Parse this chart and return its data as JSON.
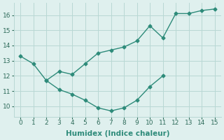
{
  "curve1_x": [
    0,
    1,
    2,
    3,
    4,
    5,
    6,
    7,
    8,
    9,
    10,
    11,
    12,
    13,
    14,
    15
  ],
  "curve1_y": [
    13.3,
    12.8,
    11.7,
    12.3,
    12.1,
    12.8,
    13.5,
    13.7,
    13.9,
    14.3,
    15.3,
    14.5,
    16.1,
    16.1,
    16.3,
    16.4
  ],
  "curve2_x": [
    2,
    3,
    4,
    5,
    6,
    7,
    8,
    9,
    10,
    11
  ],
  "curve2_y": [
    11.7,
    11.1,
    10.8,
    10.4,
    9.9,
    9.7,
    9.9,
    10.4,
    11.3,
    12.0
  ],
  "line_color": "#2e8b7a",
  "bg_color": "#dff0ee",
  "grid_color": "#b8d8d4",
  "xlabel": "Humidex (Indice chaleur)",
  "xlim": [
    -0.5,
    15.5
  ],
  "ylim": [
    9.3,
    16.8
  ],
  "xticks": [
    0,
    1,
    2,
    3,
    4,
    5,
    6,
    7,
    8,
    9,
    10,
    11,
    12,
    13,
    14,
    15
  ],
  "yticks": [
    10,
    11,
    12,
    13,
    14,
    15,
    16
  ],
  "marker": "D",
  "markersize": 2.5,
  "linewidth": 1.0,
  "xlabel_fontsize": 7.5,
  "tick_fontsize": 6.5
}
